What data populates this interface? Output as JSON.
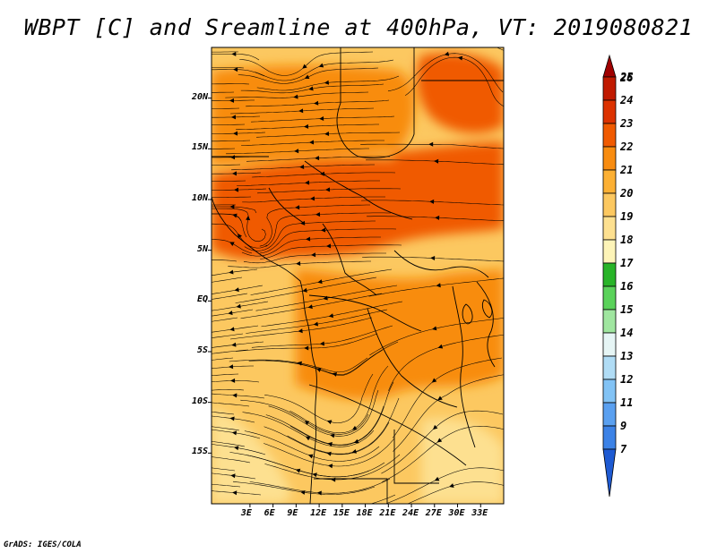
{
  "title": "WBPT [C] and Sreamline at 400hPa, VT: 2019080821",
  "footer": "GrADS: IGES/COLA",
  "map": {
    "lon_range": [
      -2,
      36
    ],
    "lat_range": [
      -20,
      25
    ],
    "lat_labels": [
      "20N",
      "15N",
      "10N",
      "5N",
      "EQ",
      "5S",
      "10S",
      "15S"
    ],
    "lon_labels": [
      "3E",
      "6E",
      "9E",
      "12E",
      "15E",
      "18E",
      "21E",
      "24E",
      "27E",
      "30E",
      "33E"
    ]
  },
  "colorbar": {
    "levels": [
      "26",
      "25",
      "24",
      "23",
      "22",
      "21",
      "20",
      "19",
      "18",
      "17",
      "16",
      "15",
      "14",
      "13",
      "12",
      "11",
      "9",
      "7"
    ],
    "colors": [
      "#a00000",
      "#c01a00",
      "#dc3200",
      "#f05a00",
      "#f88c10",
      "#fcb034",
      "#fcc860",
      "#fde090",
      "#fdf4b8",
      "#28b428",
      "#5ad25a",
      "#a0e6a0",
      "#e6f5f5",
      "#b0dcf5",
      "#82c3f5",
      "#5aa0f0",
      "#3c82e6",
      "#1e5ad2"
    ]
  },
  "colors": {
    "base": "#fcc860",
    "warm": "#f88c10",
    "hot": "#f05a00",
    "cool": "#fde090"
  }
}
